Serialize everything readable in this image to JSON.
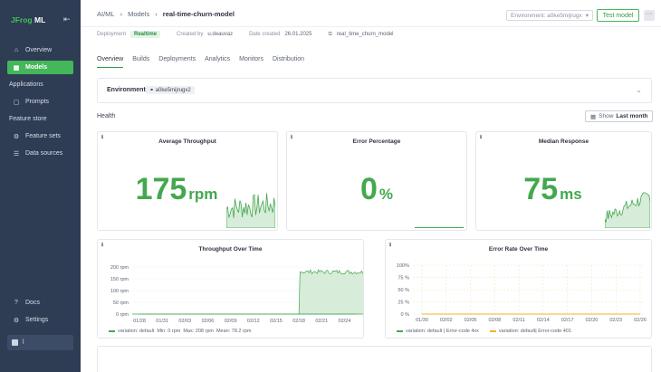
{
  "sidebar": {
    "brand_prefix": "JFrog",
    "brand_suffix": "ML",
    "items": [
      {
        "label": "Overview",
        "icon": "home-icon"
      },
      {
        "label": "Models",
        "icon": "grid-icon"
      }
    ],
    "section_applications": "Applications",
    "prompts": "Prompts",
    "section_feature_store": "Feature store",
    "feature_sets": "Feature sets",
    "data_sources": "Data sources",
    "docs": "Docs",
    "settings": "Settings",
    "user_initial": "l"
  },
  "header": {
    "crumb_1": "AI/ML",
    "crumb_2": "Models",
    "crumb_3": "real-time-churn-model",
    "environment_placeholder": "Environment: a0ke5mijrugx",
    "test_model": "Test model",
    "more": "···"
  },
  "meta": {
    "deployment_label": "Deployment",
    "deployment_value": "Realtime",
    "created_by": "Created by",
    "created_by_value": "u.deauvaz",
    "date_label": "Date created",
    "date_value": "26.01.2025",
    "model_id": "real_time_churn_model"
  },
  "tabs": [
    "Overview",
    "Builds",
    "Deployments",
    "Analytics",
    "Monitors",
    "Distribution"
  ],
  "environment_card": {
    "label": "Environment",
    "value": "a0ke5mijrugx2"
  },
  "health": {
    "title": "Health",
    "show_label": "Show",
    "show_value": "Last month"
  },
  "kpis": {
    "throughput": {
      "title": "Average Throughput",
      "value": "175",
      "unit": "rpm"
    },
    "errors": {
      "title": "Error Percentage",
      "value": "0",
      "unit": "%"
    },
    "median": {
      "title": "Median Response",
      "value": "75",
      "unit": "ms"
    }
  },
  "info_icon": "ℹ",
  "chart_data": [
    {
      "type": "area",
      "title": "Throughput Over Time",
      "x_ticks": [
        "01/28",
        "01/31",
        "02/03",
        "02/06",
        "02/09",
        "02/12",
        "02/15",
        "02/18",
        "02/21",
        "02/24"
      ],
      "y_ticks": [
        "0 rpm",
        "50 rpm",
        "100 rpm",
        "150 rpm",
        "200 rpm"
      ],
      "ylim": [
        0,
        200
      ],
      "color": "#43a84e",
      "series": [
        {
          "name": "variation: default",
          "points": [
            [
              0,
              0
            ],
            [
              6.5,
              0
            ],
            [
              7.0,
              0
            ],
            [
              7.05,
              180
            ],
            [
              10.5,
              178
            ]
          ]
        }
      ],
      "legend": {
        "name": "variation: default",
        "min": "Min: 0 rpm",
        "max": "Max: 208 rpm",
        "mean": "Mean: 78.2 rpm"
      }
    },
    {
      "type": "line",
      "title": "Error Rate Over Time",
      "x_ticks": [
        "01/30",
        "02/02",
        "02/05",
        "02/08",
        "02/11",
        "02/14",
        "02/17",
        "02/20",
        "02/23",
        "02/26"
      ],
      "y_ticks": [
        "0 %",
        "25 %",
        "50 %",
        "75 %",
        "100%"
      ],
      "ylim": [
        0,
        100
      ],
      "series": [
        {
          "name": "variation: default | Error-code 4xx",
          "color": "#43a84e",
          "values": [
            0,
            0,
            0,
            0,
            0,
            0,
            0,
            0,
            0,
            0
          ]
        },
        {
          "name": "variation: default| Error-code 401",
          "color": "#f0b429",
          "values": [
            0,
            0,
            0,
            0,
            0,
            0,
            0,
            0,
            0,
            0
          ]
        }
      ]
    }
  ]
}
